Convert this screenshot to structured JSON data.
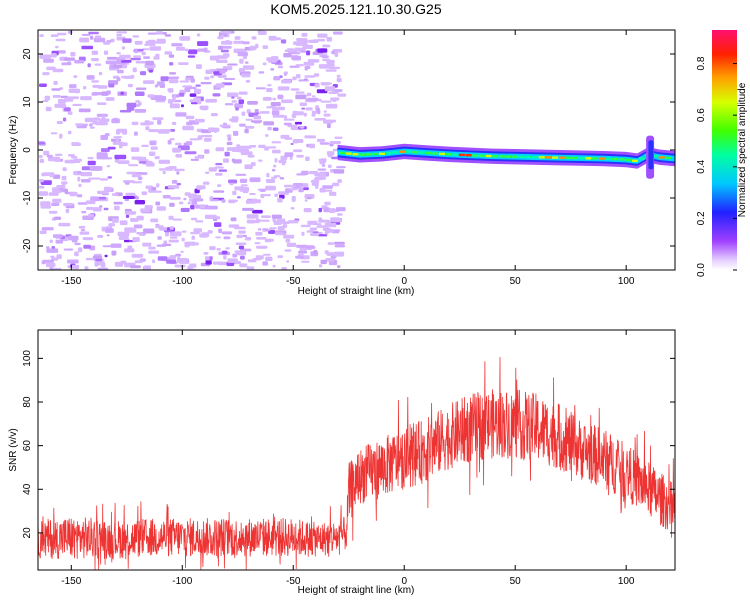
{
  "figure": {
    "title": "KOM5.2025.121.10.30.G25"
  },
  "chart_data": [
    {
      "type": "heatmap",
      "title": "KOM5.2025.121.10.30.G25",
      "xlabel": "Height of straight line (km)",
      "ylabel": "Frequency (Hz)",
      "xlim": [
        -165,
        122
      ],
      "ylim": [
        -25,
        25
      ],
      "xticks": [
        -150,
        -100,
        -50,
        0,
        50,
        100
      ],
      "yticks": [
        -20,
        -10,
        0,
        10,
        20
      ],
      "noise_region_x": [
        -165,
        -30
      ],
      "signal_trace": {
        "x": [
          -30,
          -20,
          -10,
          0,
          10,
          20,
          30,
          40,
          50,
          60,
          70,
          80,
          90,
          100,
          105,
          110,
          115,
          122
        ],
        "frequency_hz": [
          -0.5,
          -1.0,
          -0.8,
          -0.3,
          -0.6,
          -0.9,
          -1.1,
          -1.3,
          -1.4,
          -1.5,
          -1.6,
          -1.7,
          -1.8,
          -2.0,
          -2.3,
          -1.0,
          -1.5,
          -1.8
        ]
      },
      "colorbar": {
        "label": "Normalized spectral amplitude",
        "range": [
          0.0,
          0.93
        ],
        "ticks": [
          "0.0",
          "0.2",
          "0.4",
          "0.6",
          "0.8"
        ]
      }
    },
    {
      "type": "line",
      "xlabel": "Height of straight line (km)",
      "ylabel": "SNR (v/v)",
      "xlim": [
        -165,
        122
      ],
      "ylim": [
        3,
        113
      ],
      "xticks": [
        -150,
        -100,
        -50,
        0,
        50,
        100
      ],
      "yticks": [
        20,
        40,
        60,
        80,
        100
      ],
      "color": "#ee3333",
      "series": [
        {
          "x": [
            -165,
            -150,
            -130,
            -110,
            -90,
            -70,
            -50,
            -40,
            -30,
            -26,
            -25,
            -20,
            -10,
            0,
            10,
            20,
            30,
            40,
            50,
            60,
            70,
            80,
            90,
            100,
            110,
            120
          ],
          "mean": [
            17,
            18,
            17,
            18,
            18,
            18,
            18,
            17,
            18,
            20,
            38,
            46,
            50,
            54,
            58,
            64,
            68,
            70,
            70,
            68,
            64,
            58,
            54,
            48,
            40,
            32
          ],
          "spread": [
            9,
            10,
            9,
            9,
            9,
            9,
            9,
            8,
            8,
            8,
            14,
            13,
            14,
            14,
            15,
            15,
            16,
            16,
            16,
            16,
            15,
            14,
            14,
            13,
            13,
            12
          ]
        }
      ]
    }
  ]
}
